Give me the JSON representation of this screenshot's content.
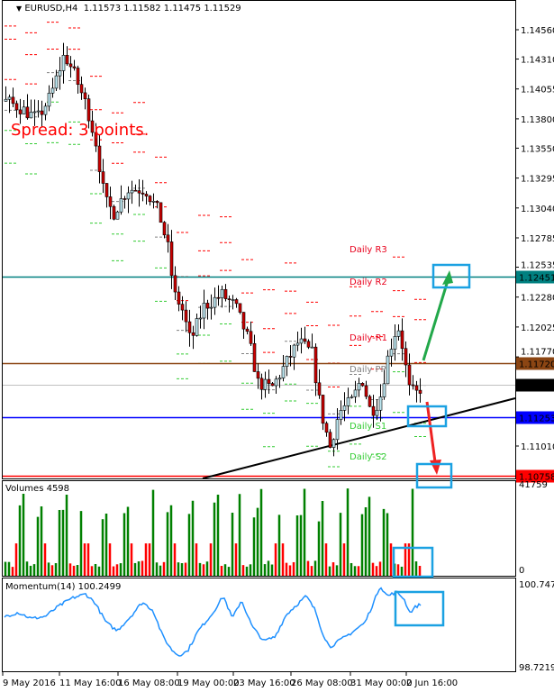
{
  "header": {
    "symbol_tf": "EURUSD,H4",
    "ohlc": "1.11573 1.11582 1.11475 1.11529"
  },
  "spread_text": "Spread: 3 points.",
  "price_axis": [
    "1.14560",
    "1.14310",
    "1.14055",
    "1.13800",
    "1.13550",
    "1.13295",
    "1.13040",
    "1.12785",
    "1.12535",
    "1.12280",
    "1.12025",
    "1.11770",
    "1.11010"
  ],
  "levels": [
    {
      "price": 1.12451,
      "label": "1.12451",
      "color": "#008080"
    },
    {
      "price": 1.1172,
      "label": "1.11720",
      "color": "#8B4513"
    },
    {
      "price": 1.11529,
      "label": "1.11529",
      "color": "#000000",
      "line": "#c0c0c0"
    },
    {
      "price": 1.11253,
      "label": "1.11253",
      "color": "#0000ff"
    },
    {
      "price": 1.10758,
      "label": "1.10758",
      "color": "#ff0000"
    }
  ],
  "pivot_labels": [
    {
      "text": "Daily R3",
      "color": "#e8001c"
    },
    {
      "text": "Daily R2",
      "color": "#e8001c"
    },
    {
      "text": "Daily-R1",
      "color": "#e8001c"
    },
    {
      "text": "Daily PP",
      "color": "#808080"
    },
    {
      "text": "Daily S1",
      "color": "#33cc33"
    },
    {
      "text": "Daily-S2",
      "color": "#33cc33"
    }
  ],
  "price_path": [
    [
      5,
      1.1395
    ],
    [
      20,
      1.139
    ],
    [
      40,
      1.138
    ],
    [
      55,
      1.14
    ],
    [
      70,
      1.1435
    ],
    [
      80,
      1.142
    ],
    [
      95,
      1.139
    ],
    [
      105,
      1.136
    ],
    [
      115,
      1.131
    ],
    [
      125,
      1.13
    ],
    [
      140,
      1.132
    ],
    [
      160,
      1.132
    ],
    [
      175,
      1.13
    ],
    [
      185,
      1.127
    ],
    [
      192,
      1.123
    ],
    [
      200,
      1.122
    ],
    [
      210,
      1.119
    ],
    [
      225,
      1.122
    ],
    [
      245,
      1.123
    ],
    [
      260,
      1.122
    ],
    [
      275,
      1.119
    ],
    [
      285,
      1.1155
    ],
    [
      300,
      1.115
    ],
    [
      315,
      1.117
    ],
    [
      330,
      1.119
    ],
    [
      345,
      1.118
    ],
    [
      355,
      1.113
    ],
    [
      365,
      1.11
    ],
    [
      375,
      1.113
    ],
    [
      390,
      1.114
    ],
    [
      400,
      1.116
    ],
    [
      410,
      1.113
    ],
    [
      420,
      1.114
    ],
    [
      430,
      1.118
    ],
    [
      440,
      1.1205
    ],
    [
      447,
      1.118
    ],
    [
      452,
      1.115
    ],
    [
      460,
      1.1145
    ],
    [
      468,
      1.11529
    ]
  ],
  "volumes": {
    "label": "Volumes 4598",
    "max_label": "41759",
    "min_label": "0",
    "max": 41759,
    "last": 4598,
    "up_color": "#008000",
    "down_color": "#ff0000"
  },
  "momentum": {
    "label": "Momentum(14) 100.2499",
    "max_label": "100.7476",
    "min_label": "98.7219",
    "max": 100.7476,
    "min": 98.7219,
    "color": "#1e90ff",
    "path": [
      [
        5,
        99.95
      ],
      [
        20,
        100.05
      ],
      [
        35,
        99.9
      ],
      [
        50,
        99.95
      ],
      [
        65,
        100.2
      ],
      [
        80,
        100.4
      ],
      [
        95,
        100.5
      ],
      [
        105,
        100.3
      ],
      [
        118,
        99.8
      ],
      [
        130,
        99.6
      ],
      [
        145,
        99.95
      ],
      [
        158,
        100.3
      ],
      [
        170,
        100.1
      ],
      [
        180,
        99.5
      ],
      [
        190,
        99.15
      ],
      [
        198,
        99.0
      ],
      [
        208,
        99.1
      ],
      [
        220,
        99.6
      ],
      [
        235,
        100.0
      ],
      [
        248,
        100.45
      ],
      [
        258,
        99.9
      ],
      [
        268,
        100.35
      ],
      [
        280,
        99.7
      ],
      [
        293,
        99.35
      ],
      [
        305,
        99.45
      ],
      [
        318,
        100.0
      ],
      [
        330,
        100.25
      ],
      [
        340,
        100.45
      ],
      [
        350,
        100.1
      ],
      [
        358,
        99.55
      ],
      [
        366,
        99.2
      ],
      [
        376,
        99.35
      ],
      [
        390,
        99.55
      ],
      [
        405,
        99.8
      ],
      [
        415,
        100.3
      ],
      [
        422,
        100.7
      ],
      [
        430,
        100.45
      ],
      [
        440,
        100.55
      ],
      [
        448,
        100.4
      ],
      [
        455,
        100.05
      ],
      [
        462,
        100.2
      ],
      [
        468,
        100.25
      ]
    ]
  },
  "time_axis": [
    "9 May 2016",
    "11 May 16:00",
    "16 May 08:00",
    "19 May 00:00",
    "23 May 16:00",
    "26 May 08:00",
    "31 May 00:00",
    "2 Jun 16:00"
  ],
  "annotation_color": "#1ba1e2"
}
